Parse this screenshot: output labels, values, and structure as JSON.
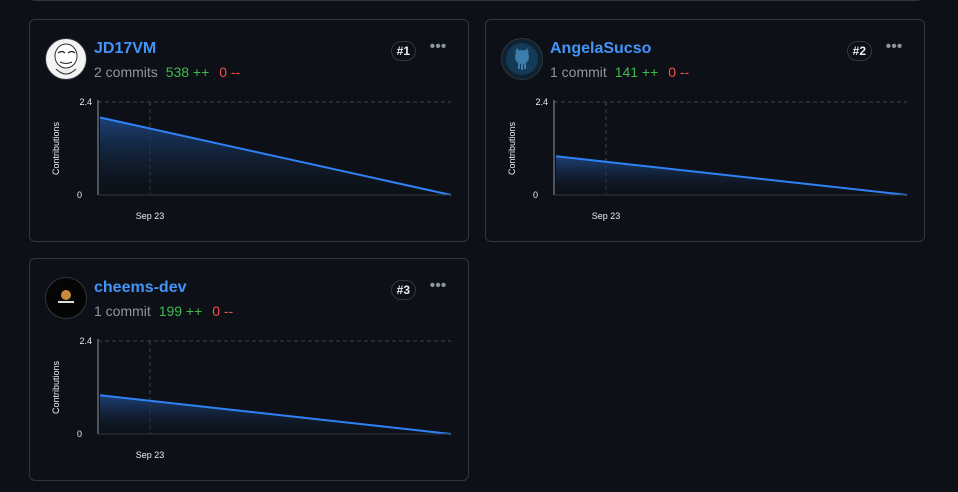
{
  "colors": {
    "accent": "#4493f8",
    "additions": "#3fb950",
    "deletions": "#f85149",
    "line": "#2f81f7"
  },
  "contributors": [
    {
      "name": "JD17VM",
      "commits": "2 commits",
      "additions": "538 ++",
      "deletions": "0 --",
      "rank": "#1",
      "avatar": "meme-face-avatar",
      "chart_data": {
        "type": "area",
        "ylabel": "Contributions",
        "ylim": [
          0,
          2.4
        ],
        "yticks": [
          "2.4",
          "0"
        ],
        "xticks": [
          "Sep 23"
        ],
        "values": [
          2,
          0
        ]
      }
    },
    {
      "name": "AngelaSucso",
      "commits": "1 commit",
      "additions": "141 ++",
      "deletions": "0 --",
      "rank": "#2",
      "avatar": "github-octocat-avatar",
      "chart_data": {
        "type": "area",
        "ylabel": "Contributions",
        "ylim": [
          0,
          2.4
        ],
        "yticks": [
          "2.4",
          "0"
        ],
        "xticks": [
          "Sep 23"
        ],
        "values": [
          1,
          0
        ]
      }
    },
    {
      "name": "cheems-dev",
      "commits": "1 commit",
      "additions": "199 ++",
      "deletions": "0 --",
      "rank": "#3",
      "avatar": "cheems-doge-avatar",
      "chart_data": {
        "type": "area",
        "ylabel": "Contributions",
        "ylim": [
          0,
          2.4
        ],
        "yticks": [
          "2.4",
          "0"
        ],
        "xticks": [
          "Sep 23"
        ],
        "values": [
          1,
          0
        ]
      }
    }
  ]
}
